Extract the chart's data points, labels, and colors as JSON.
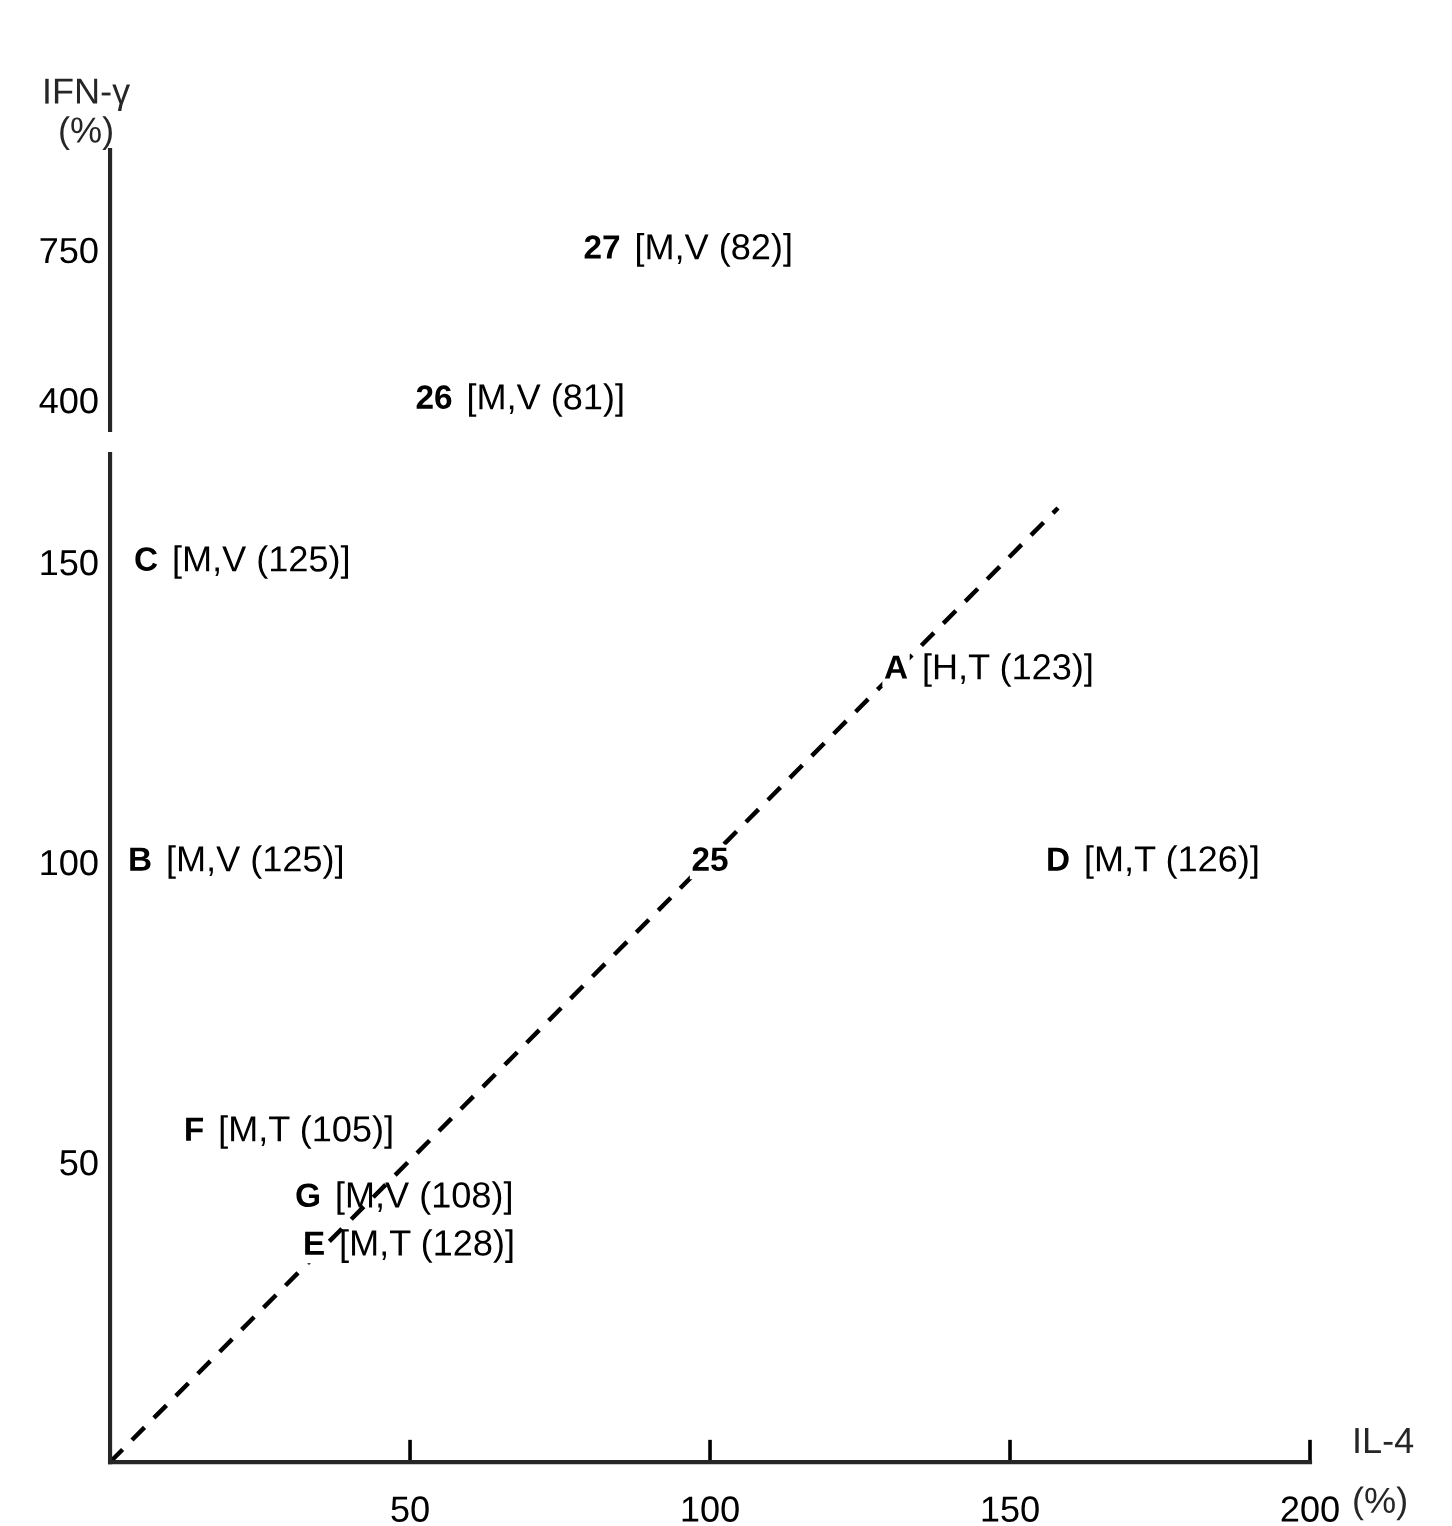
{
  "chart_data": [
    {
      "type": "scatter",
      "ylabel": "IFN-γ\n(%)",
      "xlim": [
        0,
        200
      ],
      "ylim": [
        330,
        983
      ],
      "yticks": [
        400,
        750
      ],
      "tick_labels": "y",
      "annotations": [
        {
          "text": "26 [M,V (81)]",
          "x": 54,
          "y": 400
        },
        {
          "text": "27 [M,V (82)]",
          "x": 82,
          "y": 750
        }
      ]
    },
    {
      "type": "scatter",
      "xlabel": "IL-4\n(%)",
      "xlim": [
        0,
        200
      ],
      "ylim": [
        0,
        168
      ],
      "xticks": [
        50,
        100,
        150,
        200
      ],
      "yticks": [
        50,
        100,
        150
      ],
      "series": [
        {
          "type": "line",
          "color": "#000000",
          "line_style": "dashed",
          "x": [
            0,
            158
          ],
          "values": [
            0,
            159
          ]
        }
      ],
      "annotations": [
        {
          "text": "A [H,T (123)]",
          "x": 131,
          "y": 132
        },
        {
          "text": "B [M,V (125)]",
          "x": 5,
          "y": 100
        },
        {
          "text": "C [M,V (125)]",
          "x": 6,
          "y": 150
        },
        {
          "text": "D [M,T (126)]",
          "x": 158,
          "y": 100
        },
        {
          "text": "E [M,T (128)]",
          "x": 34,
          "y": 36
        },
        {
          "text": "F [M,T (105)]",
          "x": 14,
          "y": 55
        },
        {
          "text": "G [M,V (108)]",
          "x": 33,
          "y": 44
        },
        {
          "text": "25",
          "x": 100,
          "y": 100
        }
      ]
    }
  ]
}
